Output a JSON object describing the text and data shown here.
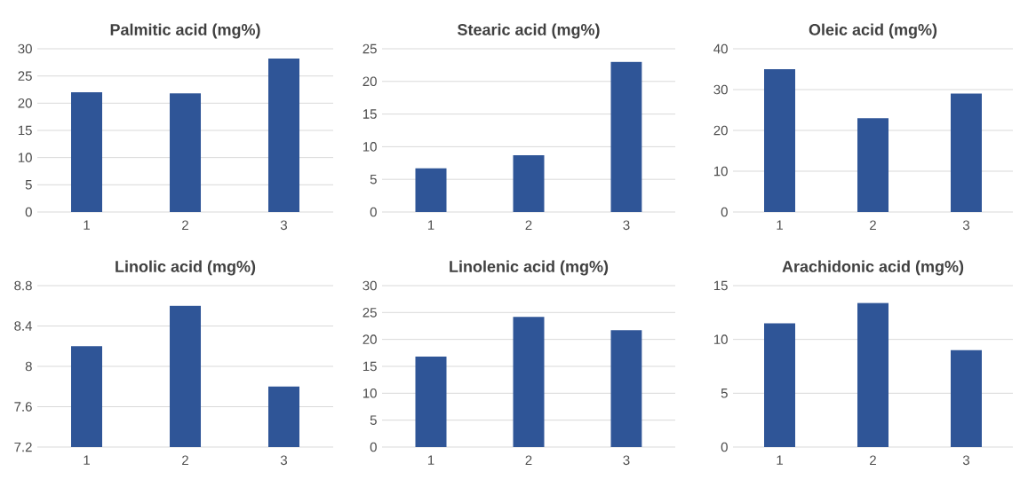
{
  "chart_data": [
    {
      "type": "bar",
      "title": "Palmitic acid (mg%)",
      "categories": [
        "1",
        "2",
        "3"
      ],
      "values": [
        22,
        21.8,
        28.2
      ],
      "color": "#2f5597",
      "ylim": [
        0,
        30
      ],
      "yticks": [
        0,
        5,
        10,
        15,
        20,
        25,
        30
      ],
      "grid": "y"
    },
    {
      "type": "bar",
      "title": "Stearic acid (mg%)",
      "categories": [
        "1",
        "2",
        "3"
      ],
      "values": [
        6.7,
        8.7,
        23
      ],
      "color": "#2f5597",
      "ylim": [
        0,
        25
      ],
      "yticks": [
        0,
        5,
        10,
        15,
        20,
        25
      ],
      "grid": "y"
    },
    {
      "type": "bar",
      "title": "Oleic acid (mg%)",
      "categories": [
        "1",
        "2",
        "3"
      ],
      "values": [
        35,
        23,
        29
      ],
      "color": "#2f5597",
      "ylim": [
        0,
        40
      ],
      "yticks": [
        0,
        10,
        20,
        30,
        40
      ],
      "grid": "y"
    },
    {
      "type": "bar",
      "title": "Linolic acid (mg%)",
      "categories": [
        "1",
        "2",
        "3"
      ],
      "values": [
        8.2,
        8.6,
        7.8
      ],
      "color": "#2f5597",
      "ylim": [
        7.2,
        8.8
      ],
      "yticks": [
        7.2,
        7.6,
        8,
        8.4,
        8.8
      ],
      "grid": "y"
    },
    {
      "type": "bar",
      "title": "Linolenic acid (mg%)",
      "categories": [
        "1",
        "2",
        "3"
      ],
      "values": [
        16.8,
        24.2,
        21.7
      ],
      "color": "#2f5597",
      "ylim": [
        0,
        30
      ],
      "yticks": [
        0,
        5,
        10,
        15,
        20,
        25,
        30
      ],
      "grid": "y"
    },
    {
      "type": "bar",
      "title": "Arachidonic acid (mg%)",
      "categories": [
        "1",
        "2",
        "3"
      ],
      "values": [
        11.5,
        13.4,
        9
      ],
      "color": "#2f5597",
      "ylim": [
        0,
        15
      ],
      "yticks": [
        0,
        5,
        10,
        15
      ],
      "grid": "y"
    }
  ]
}
